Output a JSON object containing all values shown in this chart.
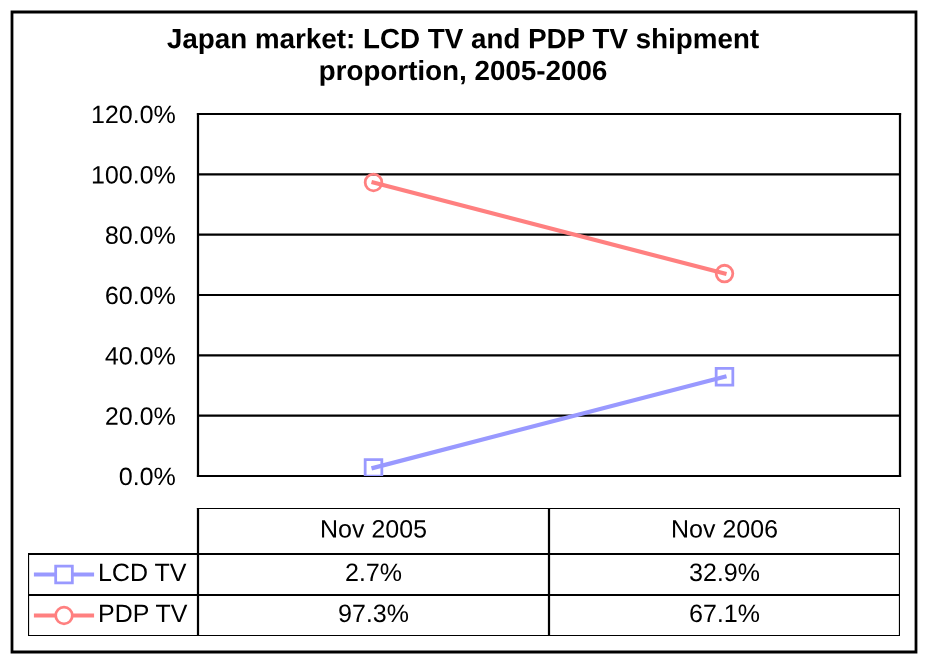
{
  "chart_data": {
    "type": "line",
    "title": "Japan market: LCD TV and PDP TV shipment\nproportion, 2005-2006",
    "categories": [
      "Nov 2005",
      "Nov 2006"
    ],
    "series": [
      {
        "name": "LCD TV",
        "color": "#9999ff",
        "values": [
          2.7,
          32.9
        ],
        "marker": "square",
        "value_labels": [
          "2.7%",
          "32.9%"
        ]
      },
      {
        "name": "PDP TV",
        "color": "#ff8080",
        "values": [
          97.3,
          67.1
        ],
        "marker": "circle",
        "value_labels": [
          "97.3%",
          "67.1%"
        ]
      }
    ],
    "ylim": [
      0,
      120
    ],
    "yticks": [
      {
        "value": 0,
        "label": "0.0%"
      },
      {
        "value": 20,
        "label": "20.0%"
      },
      {
        "value": 40,
        "label": "40.0%"
      },
      {
        "value": 60,
        "label": "60.0%"
      },
      {
        "value": 80,
        "label": "80.0%"
      },
      {
        "value": 100,
        "label": "100.0%"
      },
      {
        "value": 120,
        "label": "120.0%"
      }
    ],
    "grid": "y",
    "legend": "bottom",
    "line_style": "solid"
  }
}
